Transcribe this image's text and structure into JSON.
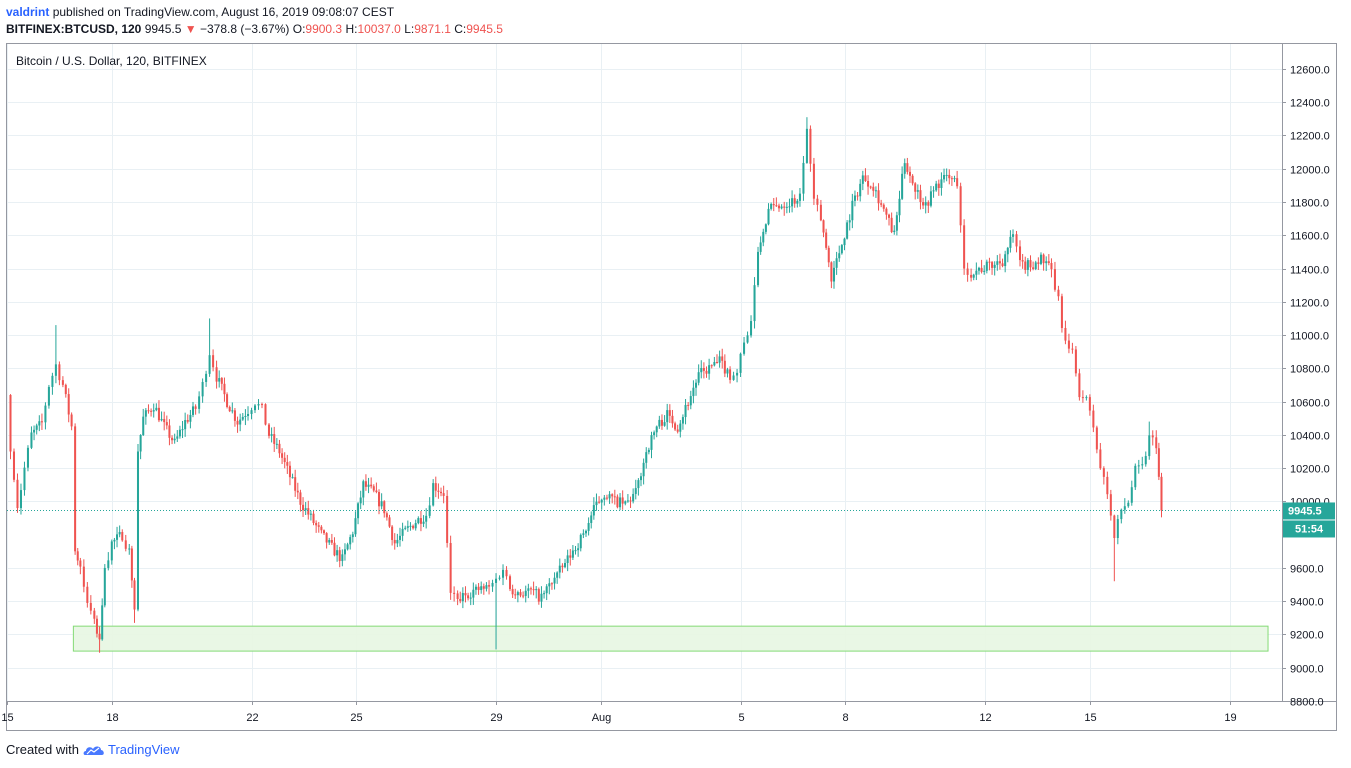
{
  "header": {
    "author": "valdrint",
    "published_text": "published on TradingView.com, August 16, 2019 09:08:07 CEST",
    "symbol": "BITFINEX:BTCUSD, 120",
    "last": "9945.5",
    "change": "−378.8 (−3.67%)",
    "open_label": "O:",
    "open": "9900.3",
    "high_label": "H:",
    "high": "10037.0",
    "low_label": "L:",
    "low": "9871.1",
    "close_label": "C:",
    "close": "9945.5"
  },
  "footer": {
    "created_with": "Created with",
    "brand": "TradingView"
  },
  "colors": {
    "up": "#26a69a",
    "down": "#ef5350",
    "zone_fill": "#e8f7e4",
    "zone_border": "#7ed96f",
    "price_line": "#26a69a",
    "grid": "#e9f0f4"
  },
  "chart_data": {
    "type": "candlestick",
    "title": "Bitcoin / U.S. Dollar, 120, BITFINEX",
    "y_ticks": [
      "12600.0",
      "12400.0",
      "12200.0",
      "12000.0",
      "11800.0",
      "11600.0",
      "11400.0",
      "11200.0",
      "11000.0",
      "10800.0",
      "10600.0",
      "10400.0",
      "10200.0",
      "10000.0",
      "9600.0",
      "9400.0",
      "9200.0",
      "9000.0",
      "8800.0"
    ],
    "y_tick_values": [
      12600,
      12400,
      12200,
      12000,
      11800,
      11600,
      11400,
      11200,
      11000,
      10800,
      10600,
      10400,
      10200,
      10000,
      9600,
      9400,
      9200,
      9000,
      8800
    ],
    "ylim": [
      8800,
      12750
    ],
    "x_ticks": [
      {
        "label": "15",
        "day": 15
      },
      {
        "label": "18",
        "day": 18
      },
      {
        "label": "22",
        "day": 22
      },
      {
        "label": "25",
        "day": 25
      },
      {
        "label": "29",
        "day": 29
      },
      {
        "label": "Aug",
        "day": 32
      },
      {
        "label": "5",
        "day": 36
      },
      {
        "label": "8",
        "day": 39
      },
      {
        "label": "12",
        "day": 43
      },
      {
        "label": "15",
        "day": 46
      },
      {
        "label": "19",
        "day": 50
      }
    ],
    "x_unit": "days from July 1, 2019 (Aug 1 = 32)",
    "xlim": [
      15.0,
      51.5
    ],
    "last_price": "9945.5",
    "last_price_value": 9945.5,
    "countdown": "51:54",
    "support_zone": {
      "low": 9100,
      "high": 9250,
      "from_day": 16.9,
      "to_day": 51.1
    },
    "path": [
      [
        15.0,
        10640
      ],
      [
        15.1,
        10300
      ],
      [
        15.3,
        9960
      ],
      [
        15.5,
        10200
      ],
      [
        15.7,
        10400
      ],
      [
        16.0,
        10470
      ],
      [
        16.2,
        10700
      ],
      [
        16.4,
        10820
      ],
      [
        16.6,
        10700
      ],
      [
        16.85,
        10450
      ],
      [
        16.95,
        9700
      ],
      [
        17.1,
        9600
      ],
      [
        17.3,
        9380
      ],
      [
        17.5,
        9280
      ],
      [
        17.65,
        9150
      ],
      [
        17.8,
        9600
      ],
      [
        18.0,
        9750
      ],
      [
        18.3,
        9800
      ],
      [
        18.5,
        9700
      ],
      [
        18.65,
        9350
      ],
      [
        18.75,
        10300
      ],
      [
        18.9,
        10500
      ],
      [
        19.2,
        10580
      ],
      [
        19.5,
        10450
      ],
      [
        19.8,
        10350
      ],
      [
        20.1,
        10480
      ],
      [
        20.4,
        10560
      ],
      [
        20.6,
        10700
      ],
      [
        20.8,
        10900
      ],
      [
        21.0,
        10750
      ],
      [
        21.3,
        10600
      ],
      [
        21.6,
        10480
      ],
      [
        21.9,
        10550
      ],
      [
        22.1,
        10600
      ],
      [
        22.3,
        10550
      ],
      [
        22.5,
        10400
      ],
      [
        22.8,
        10300
      ],
      [
        23.1,
        10150
      ],
      [
        23.4,
        10000
      ],
      [
        23.7,
        9900
      ],
      [
        24.0,
        9800
      ],
      [
        24.3,
        9720
      ],
      [
        24.6,
        9650
      ],
      [
        24.9,
        9820
      ],
      [
        25.2,
        10100
      ],
      [
        25.5,
        10050
      ],
      [
        25.8,
        9950
      ],
      [
        26.1,
        9750
      ],
      [
        26.4,
        9820
      ],
      [
        26.7,
        9880
      ],
      [
        27.0,
        9920
      ],
      [
        27.2,
        10100
      ],
      [
        27.5,
        10050
      ],
      [
        27.7,
        9450
      ],
      [
        27.9,
        9400
      ],
      [
        28.2,
        9450
      ],
      [
        28.5,
        9470
      ],
      [
        28.8,
        9480
      ],
      [
        29.0,
        9530
      ],
      [
        29.2,
        9600
      ],
      [
        29.4,
        9480
      ],
      [
        29.7,
        9450
      ],
      [
        30.0,
        9460
      ],
      [
        30.3,
        9420
      ],
      [
        30.6,
        9520
      ],
      [
        30.9,
        9600
      ],
      [
        31.2,
        9700
      ],
      [
        31.5,
        9800
      ],
      [
        31.8,
        9950
      ],
      [
        32.1,
        10050
      ],
      [
        32.4,
        10000
      ],
      [
        32.7,
        9980
      ],
      [
        33.0,
        10050
      ],
      [
        33.3,
        10300
      ],
      [
        33.6,
        10450
      ],
      [
        33.9,
        10520
      ],
      [
        34.2,
        10450
      ],
      [
        34.5,
        10600
      ],
      [
        34.8,
        10760
      ],
      [
        35.1,
        10800
      ],
      [
        35.4,
        10840
      ],
      [
        35.7,
        10760
      ],
      [
        35.9,
        10780
      ],
      [
        36.1,
        10950
      ],
      [
        36.3,
        11100
      ],
      [
        36.5,
        11500
      ],
      [
        36.8,
        11750
      ],
      [
        37.1,
        11780
      ],
      [
        37.4,
        11800
      ],
      [
        37.7,
        11830
      ],
      [
        37.9,
        12240
      ],
      [
        38.1,
        11820
      ],
      [
        38.3,
        11700
      ],
      [
        38.6,
        11350
      ],
      [
        38.9,
        11550
      ],
      [
        39.2,
        11780
      ],
      [
        39.5,
        11950
      ],
      [
        39.8,
        11900
      ],
      [
        40.1,
        11750
      ],
      [
        40.4,
        11600
      ],
      [
        40.7,
        12050
      ],
      [
        41.0,
        11880
      ],
      [
        41.3,
        11780
      ],
      [
        41.6,
        11900
      ],
      [
        41.9,
        11950
      ],
      [
        42.2,
        11920
      ],
      [
        42.4,
        11400
      ],
      [
        42.6,
        11380
      ],
      [
        42.9,
        11400
      ],
      [
        43.2,
        11420
      ],
      [
        43.5,
        11450
      ],
      [
        43.8,
        11600
      ],
      [
        44.0,
        11420
      ],
      [
        44.3,
        11420
      ],
      [
        44.6,
        11460
      ],
      [
        44.9,
        11380
      ],
      [
        45.1,
        11200
      ],
      [
        45.3,
        10950
      ],
      [
        45.5,
        10880
      ],
      [
        45.7,
        10660
      ],
      [
        45.9,
        10600
      ],
      [
        46.1,
        10450
      ],
      [
        46.3,
        10200
      ],
      [
        46.5,
        10050
      ],
      [
        46.7,
        9780
      ],
      [
        46.9,
        9950
      ],
      [
        47.1,
        10000
      ],
      [
        47.3,
        10180
      ],
      [
        47.5,
        10200
      ],
      [
        47.7,
        10380
      ],
      [
        47.9,
        10350
      ],
      [
        48.05,
        9945.5
      ]
    ]
  }
}
